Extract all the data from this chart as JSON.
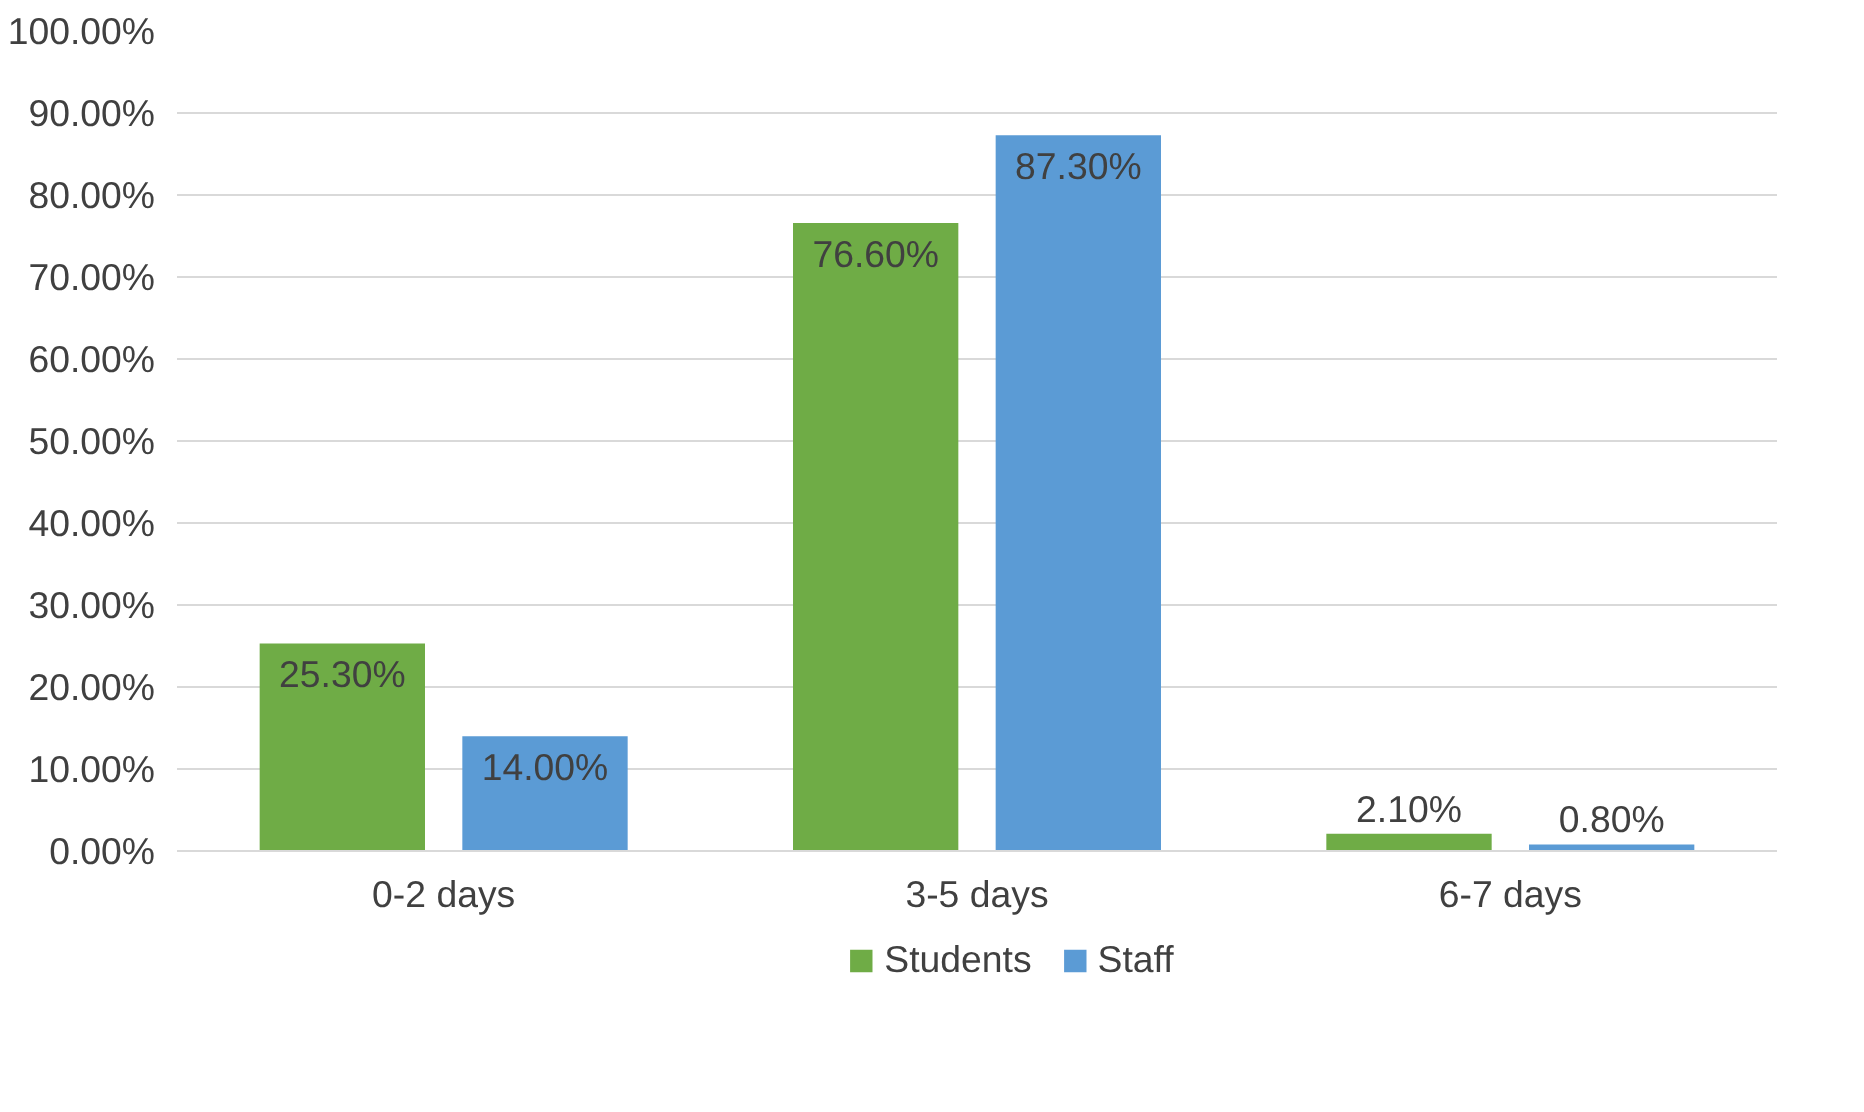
{
  "chart_data": {
    "type": "bar",
    "categories": [
      "0-2 days",
      "3-5 days",
      "6-7 days"
    ],
    "series": [
      {
        "name": "Students",
        "color": "#6fac46",
        "values": [
          25.3,
          76.6,
          2.1
        ],
        "value_labels": [
          "25.30%",
          "76.60%",
          "2.10%"
        ]
      },
      {
        "name": "Staff",
        "color": "#5b9bd5",
        "values": [
          14.0,
          87.3,
          0.8
        ],
        "value_labels": [
          "14.00%",
          "87.30%",
          "0.80%"
        ]
      }
    ],
    "ylim": [
      0,
      100
    ],
    "yticks": [
      {
        "value": 0,
        "label": "0.00%"
      },
      {
        "value": 10,
        "label": "10.00%"
      },
      {
        "value": 20,
        "label": "20.00%"
      },
      {
        "value": 30,
        "label": "30.00%"
      },
      {
        "value": 40,
        "label": "40.00%"
      },
      {
        "value": 50,
        "label": "50.00%"
      },
      {
        "value": 60,
        "label": "60.00%"
      },
      {
        "value": 70,
        "label": "70.00%"
      },
      {
        "value": 80,
        "label": "80.00%"
      },
      {
        "value": 90,
        "label": "90.00%"
      },
      {
        "value": 100,
        "label": "100.00%"
      }
    ],
    "grid": "y",
    "legend": "bottom"
  }
}
